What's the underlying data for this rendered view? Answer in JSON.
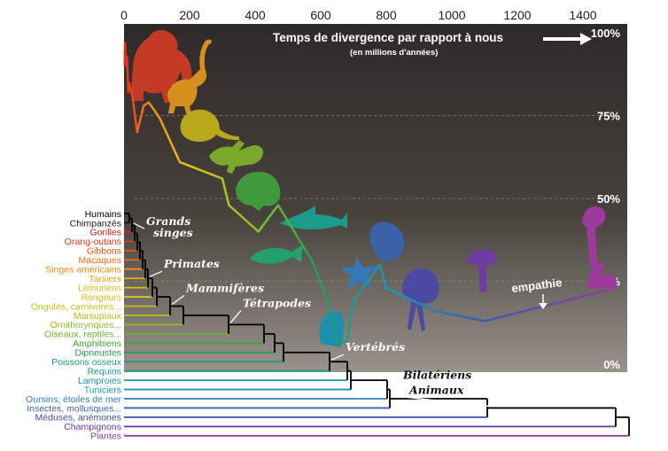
{
  "chart_data": {
    "type": "line",
    "title": "Temps de divergence par rapport à nous",
    "subtitle": "(en millions d'années)",
    "x_ticks": [
      0,
      200,
      400,
      600,
      800,
      1000,
      1200,
      1400
    ],
    "xlim": [
      0,
      1500
    ],
    "y_ticks": [
      "0%",
      "25%",
      "50%",
      "75%",
      "100%"
    ],
    "ylim": [
      0,
      100
    ],
    "curve_label": "empathie",
    "empathy_curve": [
      {
        "x": 2,
        "y": 90
      },
      {
        "x": 3,
        "y": 97
      },
      {
        "x": 6,
        "y": 90
      },
      {
        "x": 9,
        "y": 93
      },
      {
        "x": 13,
        "y": 82
      },
      {
        "x": 15,
        "y": 85
      },
      {
        "x": 25,
        "y": 81
      },
      {
        "x": 40,
        "y": 70
      },
      {
        "x": 60,
        "y": 78
      },
      {
        "x": 75,
        "y": 79
      },
      {
        "x": 90,
        "y": 77
      },
      {
        "x": 110,
        "y": 74
      },
      {
        "x": 170,
        "y": 61
      },
      {
        "x": 300,
        "y": 56
      },
      {
        "x": 320,
        "y": 48
      },
      {
        "x": 410,
        "y": 40
      },
      {
        "x": 470,
        "y": 48
      },
      {
        "x": 575,
        "y": 31
      },
      {
        "x": 625,
        "y": 18
      },
      {
        "x": 650,
        "y": 6
      },
      {
        "x": 680,
        "y": 7
      },
      {
        "x": 700,
        "y": 19
      },
      {
        "x": 780,
        "y": 30
      },
      {
        "x": 800,
        "y": 23
      },
      {
        "x": 950,
        "y": 16
      },
      {
        "x": 1100,
        "y": 13
      },
      {
        "x": 1500,
        "y": 23
      }
    ],
    "species": [
      {
        "name": "Humains",
        "color": "#000000"
      },
      {
        "name": "Chimpanzés",
        "color": "#1a1a1a"
      },
      {
        "name": "Gorilles",
        "color": "#d32020"
      },
      {
        "name": "Orang-outans",
        "color": "#e03a1e"
      },
      {
        "name": "Gibbons",
        "color": "#e0551c"
      },
      {
        "name": "Macaques",
        "color": "#e86a1a"
      },
      {
        "name": "Singes américains",
        "color": "#f08a1c"
      },
      {
        "name": "Tarsiers",
        "color": "#f2a21e"
      },
      {
        "name": "Lémuriens",
        "color": "#e6b61c"
      },
      {
        "name": "Rongeurs",
        "color": "#d8c01c"
      },
      {
        "name": "Ongulés, carnivores...",
        "color": "#bfc21c"
      },
      {
        "name": "Marsupiaux",
        "color": "#a7c21e"
      },
      {
        "name": "Ornithorynques...",
        "color": "#8fbf24"
      },
      {
        "name": "Oiseaux, reptiles...",
        "color": "#6cb52c"
      },
      {
        "name": "Amphibiens",
        "color": "#3fa636"
      },
      {
        "name": "Dipneustes",
        "color": "#24a052"
      },
      {
        "name": "Poissons osseux",
        "color": "#1e9e76"
      },
      {
        "name": "Requins",
        "color": "#1c9c8e"
      },
      {
        "name": "Lamproies",
        "color": "#1c98a6"
      },
      {
        "name": "Tuniciers",
        "color": "#1e92c0"
      },
      {
        "name": "Oursins, étoiles de mer",
        "color": "#2e7ec0"
      },
      {
        "name": "Insectes, mollusques...",
        "color": "#3a66b4"
      },
      {
        "name": "Méduses, anémones",
        "color": "#4a4aa6"
      },
      {
        "name": "Champignons",
        "color": "#6b3a9e"
      },
      {
        "name": "Plantes",
        "color": "#9a3a9e"
      }
    ],
    "clades": [
      {
        "label": "Grands singes",
        "lines": [
          "Grands",
          "singes"
        ],
        "node": 2
      },
      {
        "label": "Primates",
        "node": 8
      },
      {
        "label": "Mammifères",
        "node": 11
      },
      {
        "label": "Tétrapodes",
        "node": 13
      },
      {
        "label": "Vertébrés",
        "node": 17
      },
      {
        "label": "Bilatériens",
        "node": 20
      },
      {
        "label": "Animaux",
        "node": 22
      }
    ]
  }
}
